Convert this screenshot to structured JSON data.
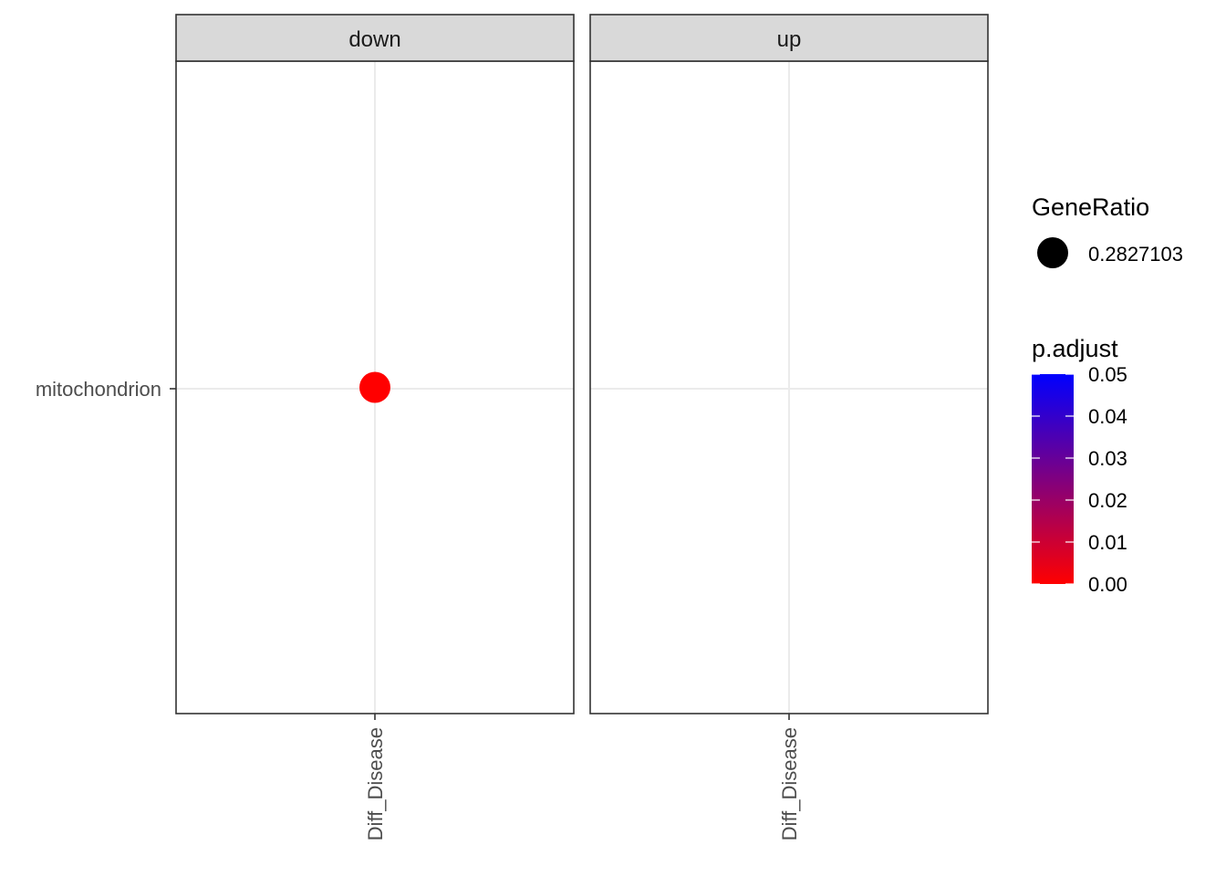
{
  "chart_data": {
    "type": "scatter",
    "subtype": "dotplot",
    "panels": [
      {
        "label": "down",
        "points": [
          {
            "x": "Diff_Disease",
            "y": "mitochondrion",
            "gene_ratio": 0.2827103,
            "p_adjust": 0.0
          }
        ]
      },
      {
        "label": "up",
        "points": []
      }
    ],
    "x_categories": [
      "Diff_Disease"
    ],
    "y_categories": [
      "mitochondrion"
    ],
    "size_legend": {
      "title": "GeneRatio",
      "values": [
        "0.2827103"
      ]
    },
    "color_legend": {
      "title": "p.adjust",
      "labels": [
        "0.05",
        "0.04",
        "0.03",
        "0.02",
        "0.01",
        "0.00"
      ],
      "range": [
        0.0,
        0.05
      ],
      "low_color": "#ff0000",
      "high_color": "#0000ff"
    },
    "grid": true,
    "legend_position": "right",
    "colors": {
      "strip_background": "#d9d9d9",
      "panel_border": "#333333",
      "grid_line": "#ebebeb",
      "axis_text": "#4d4d4d"
    }
  }
}
